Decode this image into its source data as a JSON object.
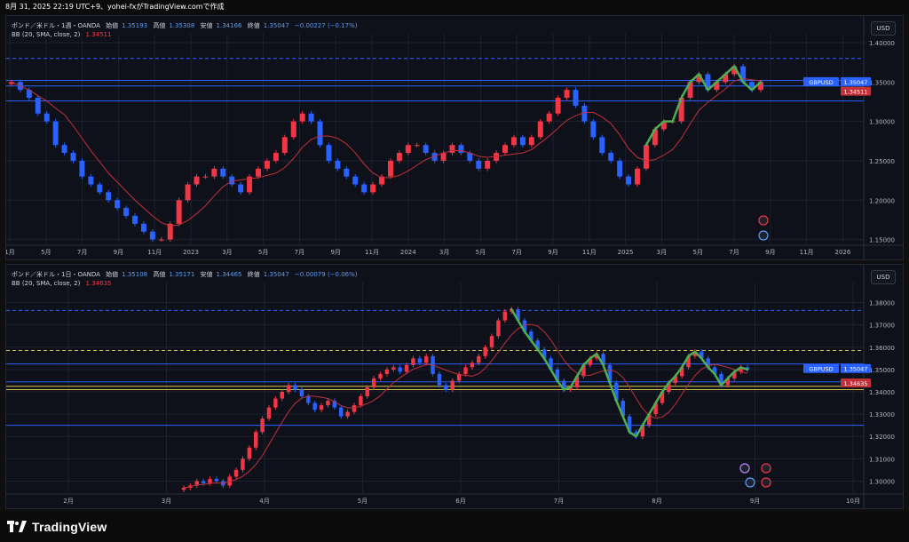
{
  "header": {
    "text": "8月 31, 2025 22:19 UTC+9、yohei-fxがTradingView.comで作成"
  },
  "top_pane": {
    "title": "ポンド／米ドル・1週・OANDA",
    "ohlc": [
      {
        "label": "始値",
        "value": "1.35193"
      },
      {
        "label": "高値",
        "value": "1.35308"
      },
      {
        "label": "安値",
        "value": "1.34166"
      },
      {
        "label": "終値",
        "value": "1.35047"
      },
      {
        "label": "",
        "value": "−0.00227 (−0.17%)"
      }
    ],
    "bb_label": "BB (20, SMA, close, 2)",
    "bb_value": "1.34511",
    "currency_button": "USD",
    "price_ticks": [
      "1.40000",
      "1.35000",
      "1.30000",
      "1.25000",
      "1.20000",
      "1.15000"
    ],
    "time_ticks": [
      "1月",
      "5月",
      "7月",
      "9月",
      "11月",
      "2023",
      "3月",
      "5月",
      "7月",
      "9月",
      "11月",
      "2024",
      "3月",
      "5月",
      "7月",
      "9月",
      "11月",
      "2025",
      "3月",
      "5月",
      "7月",
      "9月",
      "11月",
      "2026"
    ],
    "symbol_tag": "GBPUSD",
    "price_tag": "1.35047",
    "bb_tag": "1.34511"
  },
  "bottom_pane": {
    "title": "ポンド／米ドル・1日・OANDA",
    "ohlc": [
      {
        "label": "始値",
        "value": "1.35108"
      },
      {
        "label": "高値",
        "value": "1.35171"
      },
      {
        "label": "安値",
        "value": "1.34465"
      },
      {
        "label": "終値",
        "value": "1.35047"
      },
      {
        "label": "",
        "value": "−0.00079 (−0.06%)"
      }
    ],
    "bb_label": "BB (20, SMA, close, 2)",
    "bb_value": "1.34635",
    "currency_button": "USD",
    "price_ticks": [
      "1.38000",
      "1.37000",
      "1.36000",
      "1.35000",
      "1.34000",
      "1.33000",
      "1.32000",
      "1.31000",
      "1.30000"
    ],
    "time_ticks": [
      "2月",
      "3月",
      "4月",
      "5月",
      "6月",
      "7月",
      "8月",
      "9月",
      "10月"
    ],
    "symbol_tag": "GBPUSD",
    "price_tag": "1.35047",
    "bb_tag": "1.34635"
  },
  "footer": {
    "brand": "TradingView"
  },
  "colors": {
    "up": "#f23645",
    "down": "#2962ff",
    "bb": "#c2303a",
    "highlight": "#4caf50",
    "hline": "#2962ff",
    "yline": "#d4c24a",
    "bg": "#0e111a"
  },
  "chart_data": [
    {
      "type": "candlestick",
      "title": "ポンド／米ドル・1週・OANDA",
      "ylim": [
        1.145,
        1.4
      ],
      "close_series": [
        1.35,
        1.34,
        1.33,
        1.31,
        1.3,
        1.27,
        1.26,
        1.25,
        1.23,
        1.22,
        1.21,
        1.2,
        1.19,
        1.18,
        1.17,
        1.16,
        1.15,
        1.15,
        1.17,
        1.2,
        1.22,
        1.23,
        1.23,
        1.24,
        1.23,
        1.22,
        1.21,
        1.23,
        1.24,
        1.25,
        1.26,
        1.28,
        1.3,
        1.31,
        1.3,
        1.27,
        1.25,
        1.24,
        1.23,
        1.22,
        1.21,
        1.22,
        1.23,
        1.25,
        1.26,
        1.27,
        1.27,
        1.26,
        1.25,
        1.26,
        1.27,
        1.26,
        1.25,
        1.24,
        1.25,
        1.26,
        1.27,
        1.28,
        1.27,
        1.28,
        1.3,
        1.31,
        1.33,
        1.34,
        1.32,
        1.3,
        1.28,
        1.26,
        1.25,
        1.23,
        1.22,
        1.24,
        1.27,
        1.29,
        1.3,
        1.3,
        1.33,
        1.35,
        1.36,
        1.34,
        1.35,
        1.36,
        1.37,
        1.35,
        1.34,
        1.35
      ],
      "horizontal_lines": [
        1.38,
        1.352,
        1.345,
        1.326
      ],
      "bb_current": 1.34511,
      "last_price": 1.35047
    },
    {
      "type": "candlestick",
      "title": "ポンド／米ドル・1日・OANDA",
      "ylim": [
        1.295,
        1.385
      ],
      "close_series": [
        1.297,
        1.298,
        1.3,
        1.299,
        1.301,
        1.3,
        1.298,
        1.302,
        1.305,
        1.31,
        1.315,
        1.322,
        1.328,
        1.333,
        1.337,
        1.34,
        1.343,
        1.341,
        1.338,
        1.335,
        1.332,
        1.334,
        1.336,
        1.333,
        1.329,
        1.331,
        1.334,
        1.338,
        1.342,
        1.346,
        1.348,
        1.35,
        1.351,
        1.349,
        1.352,
        1.355,
        1.353,
        1.356,
        1.348,
        1.343,
        1.341,
        1.345,
        1.348,
        1.351,
        1.353,
        1.356,
        1.36,
        1.365,
        1.372,
        1.376,
        1.377,
        1.372,
        1.367,
        1.363,
        1.359,
        1.355,
        1.35,
        1.345,
        1.341,
        1.342,
        1.347,
        1.352,
        1.355,
        1.357,
        1.352,
        1.344,
        1.336,
        1.329,
        1.322,
        1.32,
        1.325,
        1.33,
        1.335,
        1.34,
        1.344,
        1.347,
        1.351,
        1.356,
        1.358,
        1.355,
        1.351,
        1.348,
        1.343,
        1.346,
        1.349,
        1.351,
        1.35
      ],
      "horizontal_lines": [
        1.3765,
        1.3585,
        1.3525,
        1.3445,
        1.3425,
        1.341,
        1.325
      ],
      "bb_current": 1.34635,
      "last_price": 1.35047
    }
  ]
}
